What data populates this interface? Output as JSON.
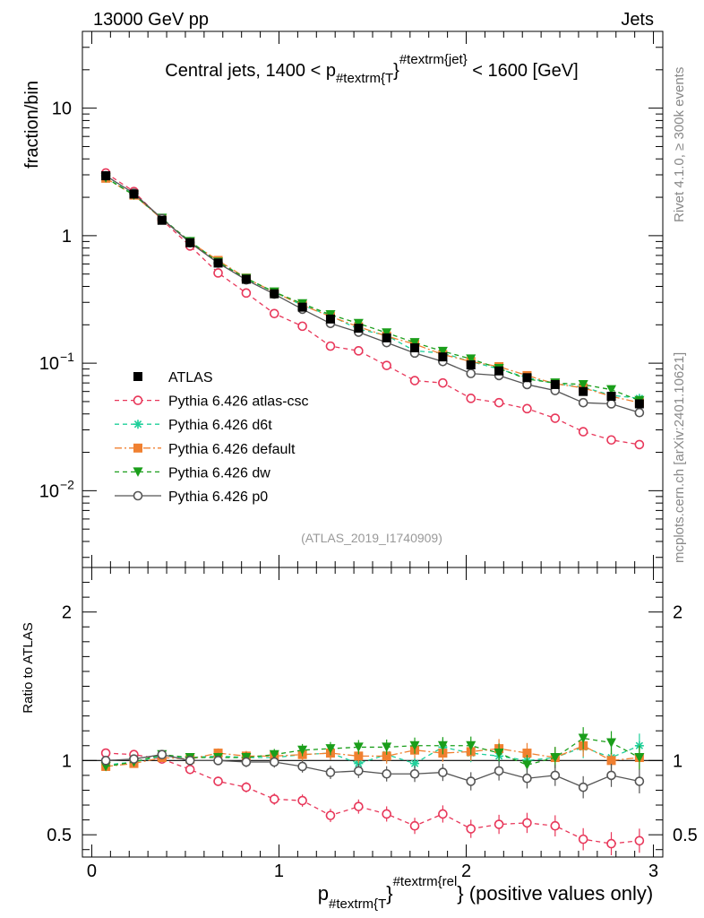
{
  "header": {
    "left": "13000 GeV pp",
    "right": "Jets"
  },
  "side": {
    "rivet": "Rivet 4.1.0, ≥ 300k events",
    "mcplots": "mcplots.cern.ch [arXiv:2401.10621]"
  },
  "chart_data": {
    "type": "line",
    "title": {
      "prefix": "Central jets, 1400 < p",
      "sub": "#textrm{T",
      "close": "}",
      "sup": "#textrm{jet}",
      "suffix": " < 1600 [GeV]"
    },
    "watermark": "(ATLAS_2019_I1740909)",
    "main_ylabel": "fraction/bin",
    "ratio_ylabel": "Ratio to ATLAS",
    "xlabel": {
      "base": "p",
      "sub": "#textrm{T",
      "close": "}",
      "sup": "#textrm{rel",
      "suffix": "} (positive values only)"
    },
    "xlim": [
      -0.05,
      3.05
    ],
    "ylim_main": [
      0.0025,
      40
    ],
    "ylim_ratio": [
      0.35,
      2.3
    ],
    "x_ticks": [
      "0",
      "1",
      "2",
      "3"
    ],
    "main_y_ticks": [
      "10",
      "1",
      "10",
      "10"
    ],
    "main_y_ticks_exp": [
      "",
      "",
      "−1",
      "−2"
    ],
    "ratio_y_ticks": [
      "2",
      "1",
      "0.5"
    ],
    "x": [
      0.075,
      0.225,
      0.375,
      0.525,
      0.675,
      0.825,
      0.975,
      1.125,
      1.275,
      1.425,
      1.575,
      1.725,
      1.875,
      2.025,
      2.175,
      2.325,
      2.475,
      2.625,
      2.775,
      2.925
    ],
    "legend": [
      "ATLAS",
      "Pythia 6.426 atlas-csc",
      "Pythia 6.426 d6t",
      "Pythia 6.426 default",
      "Pythia 6.426 dw",
      "Pythia 6.426 p0"
    ],
    "series": [
      {
        "name": "ATLAS",
        "color": "#000000",
        "marker": "square",
        "dash": "",
        "values": [
          2.95,
          2.12,
          1.32,
          0.88,
          0.61,
          0.455,
          0.35,
          0.275,
          0.222,
          0.188,
          0.158,
          0.132,
          0.112,
          0.097,
          0.087,
          0.077,
          0.068,
          0.06,
          0.055,
          0.048
        ],
        "ratio": [
          1.0,
          1.0,
          1.0,
          1.0,
          1.0,
          1.0,
          1.0,
          1.0,
          1.0,
          1.0,
          1.0,
          1.0,
          1.0,
          1.0,
          1.0,
          1.0,
          1.0,
          1.0,
          1.0,
          1.0
        ]
      },
      {
        "name": "Pythia 6.426 atlas-csc",
        "color": "#e8375a",
        "marker": "open-circle",
        "dash": "5,4",
        "values": [
          3.1,
          2.22,
          1.33,
          0.83,
          0.51,
          0.355,
          0.245,
          0.195,
          0.136,
          0.125,
          0.096,
          0.073,
          0.07,
          0.053,
          0.049,
          0.044,
          0.037,
          0.029,
          0.025,
          0.023
        ],
        "ratio": [
          1.05,
          1.04,
          1.01,
          0.94,
          0.86,
          0.82,
          0.74,
          0.73,
          0.63,
          0.69,
          0.64,
          0.56,
          0.64,
          0.54,
          0.57,
          0.58,
          0.56,
          0.47,
          0.44,
          0.46
        ]
      },
      {
        "name": "Pythia 6.426 d6t",
        "color": "#1fcf9a",
        "marker": "star",
        "dash": "5,4",
        "values": [
          2.85,
          2.1,
          1.36,
          0.9,
          0.63,
          0.46,
          0.36,
          0.285,
          0.235,
          0.185,
          0.165,
          0.125,
          0.12,
          0.103,
          0.09,
          0.077,
          0.069,
          0.065,
          0.056,
          0.053
        ],
        "ratio": [
          0.97,
          0.99,
          1.03,
          1.02,
          1.03,
          1.02,
          1.02,
          1.04,
          1.05,
          0.98,
          1.04,
          0.98,
          1.09,
          1.05,
          1.03,
          1.0,
          1.02,
          1.09,
          1.02,
          1.1
        ]
      },
      {
        "name": "Pythia 6.426 default",
        "color": "#f08030",
        "marker": "square",
        "dash": "8,3,2,3",
        "values": [
          2.82,
          2.08,
          1.35,
          0.89,
          0.64,
          0.465,
          0.36,
          0.285,
          0.232,
          0.193,
          0.163,
          0.141,
          0.117,
          0.103,
          0.094,
          0.08,
          0.069,
          0.064,
          0.055,
          0.049
        ],
        "ratio": [
          0.96,
          0.98,
          1.02,
          1.01,
          1.05,
          1.03,
          1.03,
          1.04,
          1.05,
          1.03,
          1.03,
          1.07,
          1.05,
          1.06,
          1.08,
          1.05,
          1.02,
          1.1,
          1.0,
          1.02
        ]
      },
      {
        "name": "Pythia 6.426 dw",
        "color": "#1a9e1a",
        "marker": "down-triangle",
        "dash": "5,4",
        "values": [
          2.84,
          2.08,
          1.37,
          0.9,
          0.62,
          0.463,
          0.362,
          0.293,
          0.24,
          0.205,
          0.173,
          0.145,
          0.124,
          0.108,
          0.091,
          0.075,
          0.07,
          0.068,
          0.062,
          0.051
        ],
        "ratio": [
          0.96,
          0.99,
          1.04,
          1.02,
          1.02,
          1.02,
          1.04,
          1.07,
          1.08,
          1.09,
          1.09,
          1.1,
          1.1,
          1.1,
          1.05,
          0.97,
          1.02,
          1.15,
          1.12,
          1.02
        ]
      },
      {
        "name": "Pythia 6.426 p0",
        "color": "#555555",
        "marker": "open-circle",
        "dash": "",
        "values": [
          2.95,
          2.15,
          1.36,
          0.88,
          0.61,
          0.45,
          0.348,
          0.265,
          0.205,
          0.175,
          0.145,
          0.12,
          0.103,
          0.083,
          0.08,
          0.068,
          0.061,
          0.049,
          0.048,
          0.041
        ],
        "ratio": [
          1.0,
          1.01,
          1.04,
          1.0,
          1.0,
          0.99,
          0.99,
          0.96,
          0.92,
          0.93,
          0.91,
          0.91,
          0.92,
          0.86,
          0.93,
          0.88,
          0.9,
          0.82,
          0.9,
          0.86
        ]
      }
    ]
  }
}
